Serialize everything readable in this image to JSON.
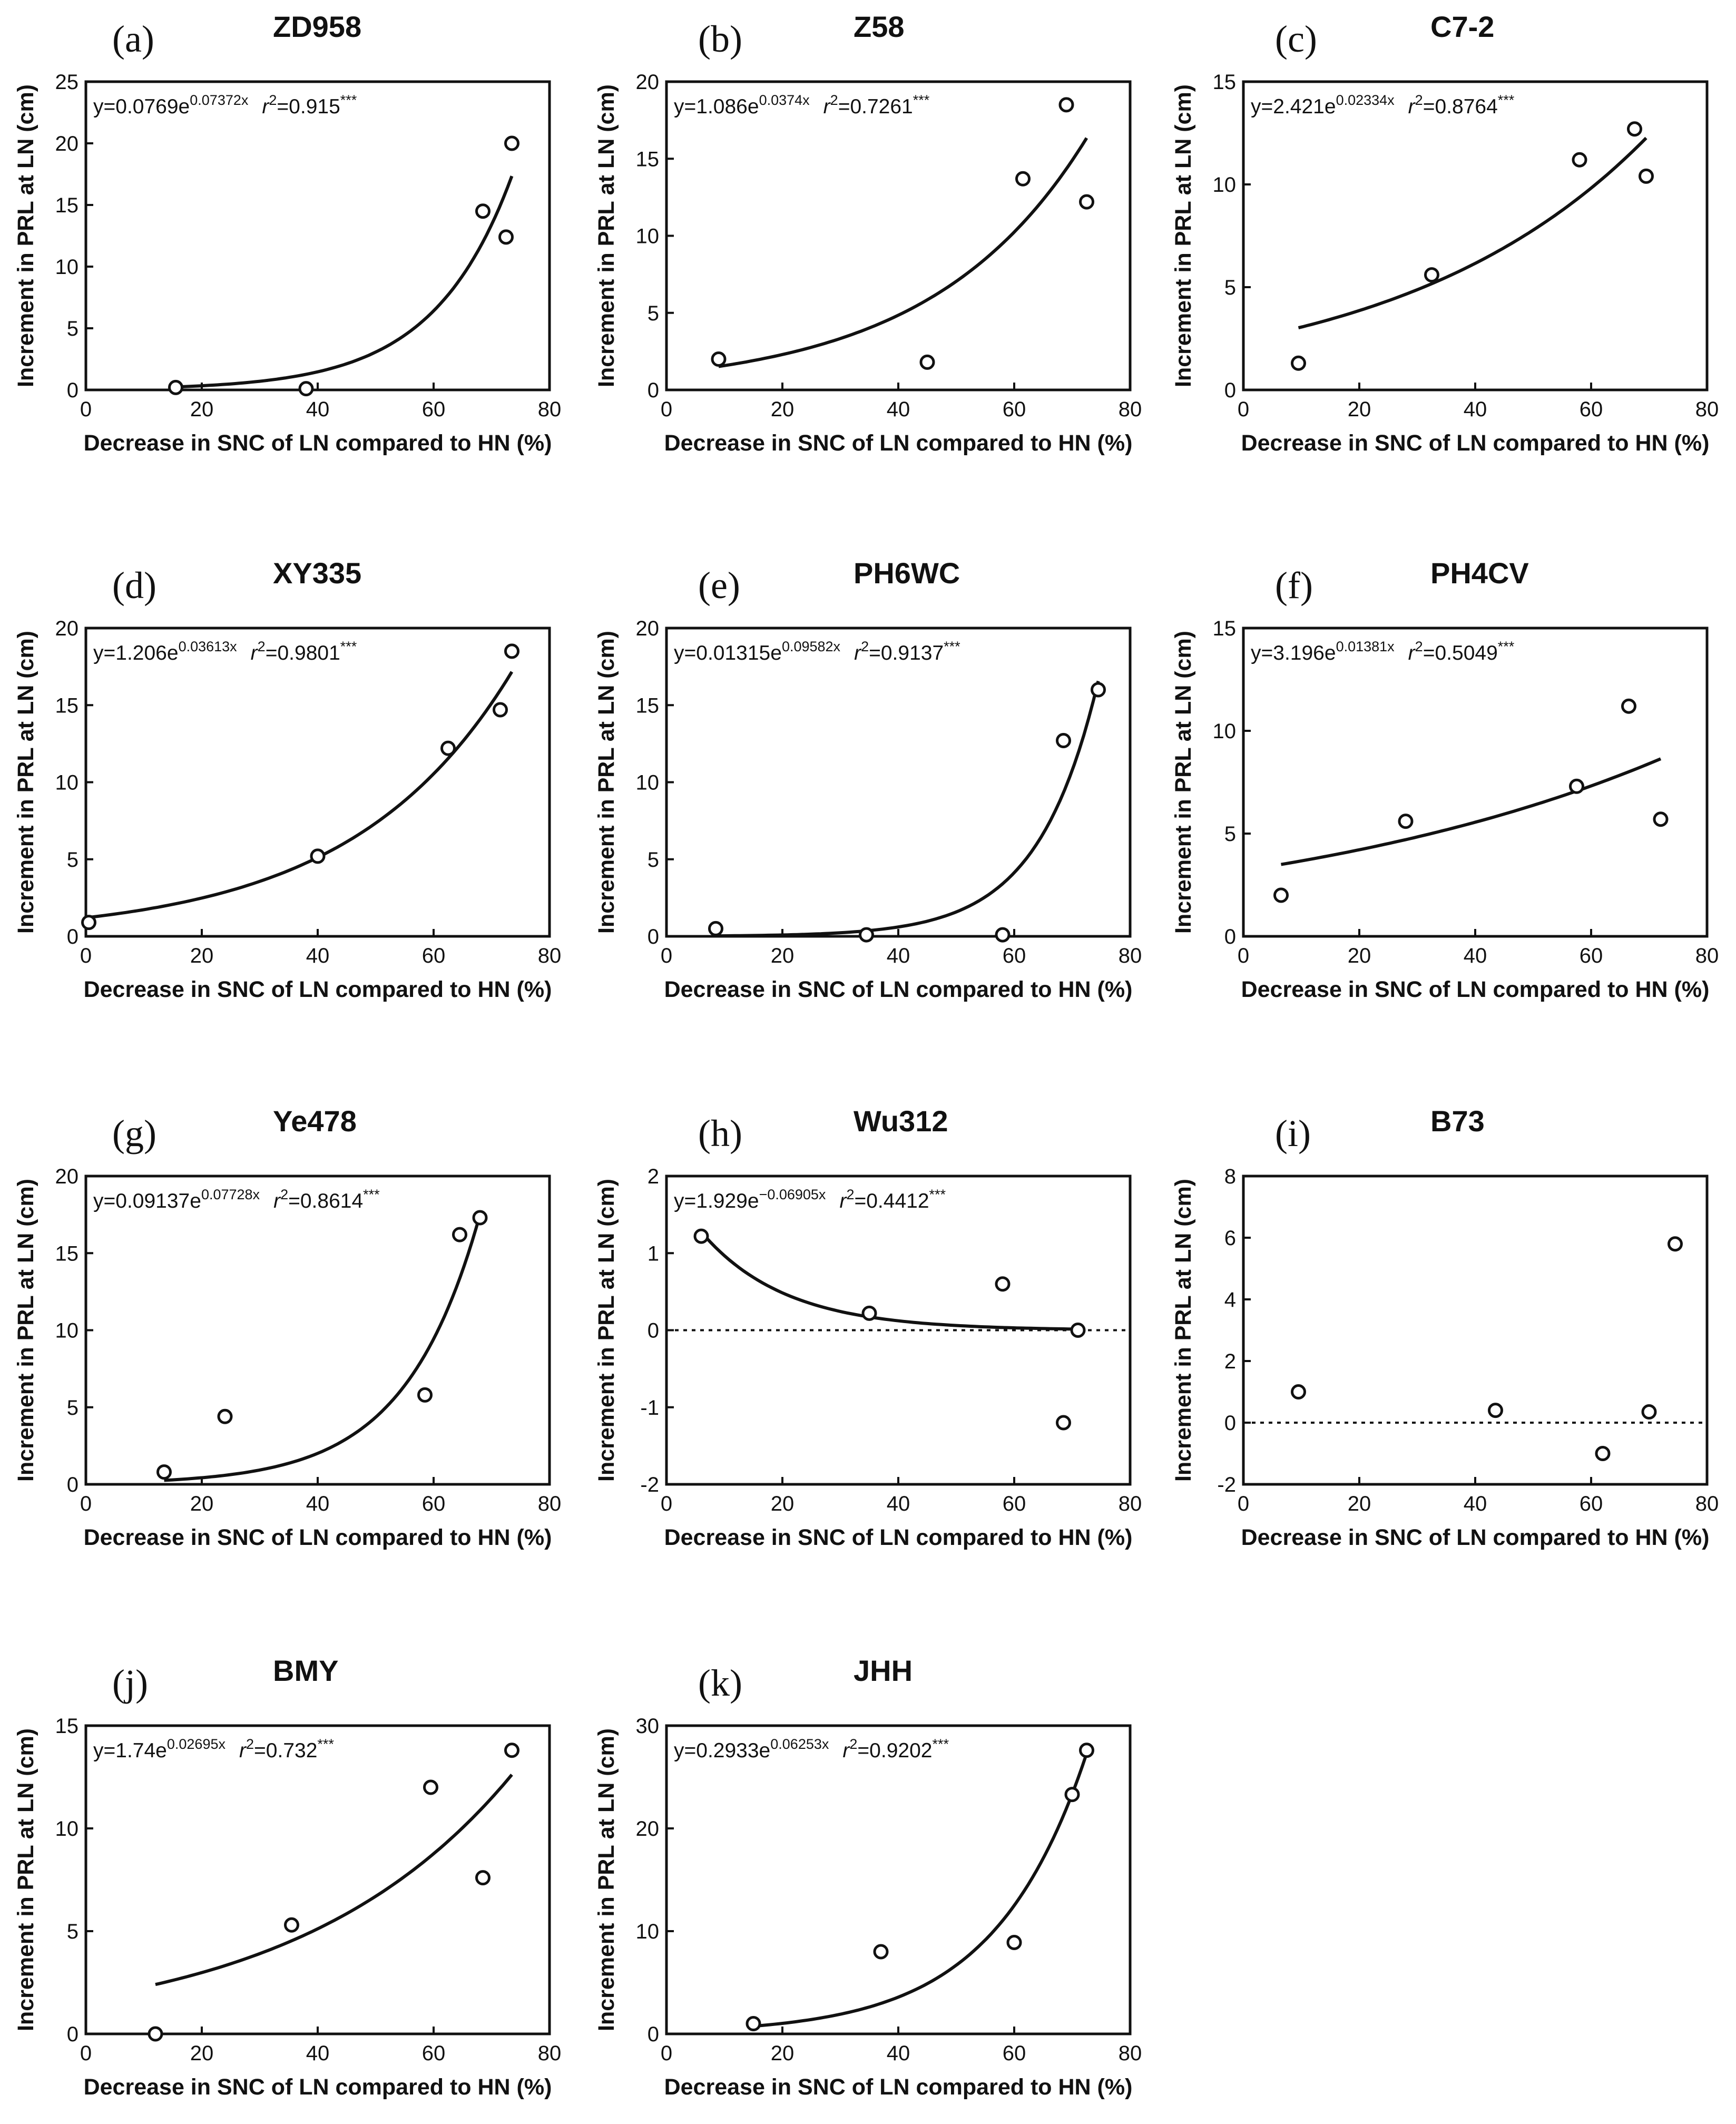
{
  "figure": {
    "panels": [
      {
        "id": "a",
        "label": "(a)",
        "title": "ZD958"
      },
      {
        "id": "b",
        "label": "(b)",
        "title": "Z58"
      },
      {
        "id": "c",
        "label": "(c)",
        "title": "C7-2"
      },
      {
        "id": "d",
        "label": "(d)",
        "title": "XY335"
      },
      {
        "id": "e",
        "label": "(e)",
        "title": "PH6WC"
      },
      {
        "id": "f",
        "label": "(f)",
        "title": "PH4CV"
      },
      {
        "id": "g",
        "label": "(g)",
        "title": "Ye478"
      },
      {
        "id": "h",
        "label": "(h)",
        "title": "Wu312"
      },
      {
        "id": "i",
        "label": "(i)",
        "title": "B73"
      },
      {
        "id": "j",
        "label": "(j)",
        "title": "BMY"
      },
      {
        "id": "k",
        "label": "(k)",
        "title": "JHH"
      }
    ]
  },
  "chart_data": [
    {
      "type": "scatter",
      "panel": "(a)",
      "title": "ZD958",
      "xlabel": "Decrease in SNC of LN compared to HN (%)",
      "ylabel": "Increment in PRL at LN (cm)",
      "xlim": [
        0,
        80
      ],
      "ylim": [
        0,
        25
      ],
      "xticks": [
        "0",
        "20",
        "40",
        "60",
        "80"
      ],
      "yticks": [
        "0",
        "5",
        "10",
        "15",
        "20",
        "25"
      ],
      "x": [
        15.5,
        38.0,
        68.5,
        72.5,
        73.5
      ],
      "y": [
        0.2,
        0.1,
        14.5,
        12.4,
        20.0
      ],
      "fit": {
        "a": 0.0769,
        "b": 0.07372,
        "x_range": [
          15.5,
          73.5
        ]
      },
      "equation": {
        "lhs": "y=0.0769e",
        "exponent": "0.07372x",
        "r2_label": "r",
        "r2_value": "=0.915",
        "signif": "***"
      },
      "zero_line": false
    },
    {
      "type": "scatter",
      "panel": "(b)",
      "title": "Z58",
      "xlabel": "Decrease in SNC of LN compared to HN (%)",
      "ylabel": "Increment in PRL at LN (cm)",
      "xlim": [
        0,
        80
      ],
      "ylim": [
        0,
        20
      ],
      "xticks": [
        "0",
        "20",
        "40",
        "60",
        "80"
      ],
      "yticks": [
        "0",
        "5",
        "10",
        "15",
        "20"
      ],
      "x": [
        9.0,
        45.0,
        61.5,
        69.0,
        72.5
      ],
      "y": [
        2.0,
        1.8,
        13.7,
        18.5,
        12.2
      ],
      "fit": {
        "a": 1.086,
        "b": 0.0374,
        "x_range": [
          9.0,
          72.5
        ]
      },
      "equation": {
        "lhs": "y=1.086e",
        "exponent": "0.0374x",
        "r2_label": "r",
        "r2_value": "=0.7261",
        "signif": "***"
      },
      "zero_line": false
    },
    {
      "type": "scatter",
      "panel": "(c)",
      "title": "C7-2",
      "xlabel": "Decrease in SNC of LN compared to HN (%)",
      "ylabel": "Increment in PRL at LN (cm)",
      "xlim": [
        0,
        80
      ],
      "ylim": [
        0,
        15
      ],
      "xticks": [
        "0",
        "20",
        "40",
        "60",
        "80"
      ],
      "yticks": [
        "0",
        "5",
        "10",
        "15"
      ],
      "x": [
        9.5,
        32.5,
        58.0,
        67.5,
        69.5
      ],
      "y": [
        1.3,
        5.6,
        11.2,
        12.7,
        10.4
      ],
      "fit": {
        "a": 2.421,
        "b": 0.02334,
        "x_range": [
          9.5,
          69.5
        ]
      },
      "equation": {
        "lhs": "y=2.421e",
        "exponent": "0.02334x",
        "r2_label": "r",
        "r2_value": "=0.8764",
        "signif": "***"
      },
      "zero_line": false
    },
    {
      "type": "scatter",
      "panel": "(d)",
      "title": "XY335",
      "xlabel": "Decrease in SNC of LN compared to HN (%)",
      "ylabel": "Increment in PRL at LN (cm)",
      "xlim": [
        0,
        80
      ],
      "ylim": [
        0,
        20
      ],
      "xticks": [
        "0",
        "20",
        "40",
        "60",
        "80"
      ],
      "yticks": [
        "0",
        "5",
        "10",
        "15",
        "20"
      ],
      "x": [
        0.5,
        40.0,
        62.5,
        71.5,
        73.5
      ],
      "y": [
        0.9,
        5.2,
        12.2,
        14.7,
        18.5
      ],
      "fit": {
        "a": 1.206,
        "b": 0.03613,
        "x_range": [
          0.5,
          73.5
        ]
      },
      "equation": {
        "lhs": "y=1.206e",
        "exponent": "0.03613x",
        "r2_label": "r",
        "r2_value": "=0.9801",
        "signif": "***"
      },
      "zero_line": false
    },
    {
      "type": "scatter",
      "panel": "(e)",
      "title": "PH6WC",
      "xlabel": "Decrease in SNC of LN compared to HN (%)",
      "ylabel": "Increment in PRL at LN (cm)",
      "xlim": [
        0,
        80
      ],
      "ylim": [
        0,
        20
      ],
      "xticks": [
        "0",
        "20",
        "40",
        "60",
        "80"
      ],
      "yticks": [
        "0",
        "5",
        "10",
        "15",
        "20"
      ],
      "x": [
        8.5,
        34.5,
        58.0,
        68.5,
        74.5
      ],
      "y": [
        0.5,
        0.1,
        0.1,
        12.7,
        16.0
      ],
      "fit": {
        "a": 0.01315,
        "b": 0.09582,
        "x_range": [
          8.5,
          74.5
        ]
      },
      "equation": {
        "lhs": "y=0.01315e",
        "exponent": "0.09582x",
        "r2_label": "r",
        "r2_value": "=0.9137",
        "signif": "***"
      },
      "zero_line": false
    },
    {
      "type": "scatter",
      "panel": "(f)",
      "title": "PH4CV",
      "xlabel": "Decrease in SNC of LN compared to HN (%)",
      "ylabel": "Increment in PRL at LN (cm)",
      "xlim": [
        0,
        80
      ],
      "ylim": [
        0,
        15
      ],
      "xticks": [
        "0",
        "20",
        "40",
        "60",
        "80"
      ],
      "yticks": [
        "0",
        "5",
        "10",
        "15"
      ],
      "x": [
        6.5,
        28.0,
        57.5,
        66.5,
        72.0
      ],
      "y": [
        2.0,
        5.6,
        7.3,
        11.2,
        5.7
      ],
      "fit": {
        "a": 3.196,
        "b": 0.01381,
        "x_range": [
          6.5,
          72.0
        ]
      },
      "equation": {
        "lhs": "y=3.196e",
        "exponent": "0.01381x",
        "r2_label": "r",
        "r2_value": "=0.5049",
        "signif": "***"
      },
      "zero_line": false
    },
    {
      "type": "scatter",
      "panel": "(g)",
      "title": "Ye478",
      "xlabel": "Decrease in SNC of LN compared to HN (%)",
      "ylabel": "Increment in PRL at LN (cm)",
      "xlim": [
        0,
        80
      ],
      "ylim": [
        0,
        20
      ],
      "xticks": [
        "0",
        "20",
        "40",
        "60",
        "80"
      ],
      "yticks": [
        "0",
        "5",
        "10",
        "15",
        "20"
      ],
      "x": [
        13.5,
        24.0,
        58.5,
        64.5,
        68.0
      ],
      "y": [
        0.8,
        4.4,
        5.8,
        16.2,
        17.3
      ],
      "fit": {
        "a": 0.09137,
        "b": 0.07728,
        "x_range": [
          13.5,
          68.0
        ]
      },
      "equation": {
        "lhs": "y=0.09137e",
        "exponent": "0.07728x",
        "r2_label": "r",
        "r2_value": "=0.8614",
        "signif": "***"
      },
      "zero_line": false
    },
    {
      "type": "scatter",
      "panel": "(h)",
      "title": "Wu312",
      "xlabel": "Decrease in SNC of LN compared to HN (%)",
      "ylabel": "Increment in PRL at LN (cm)",
      "xlim": [
        0,
        80
      ],
      "ylim": [
        -2,
        2
      ],
      "xticks": [
        "0",
        "20",
        "40",
        "60",
        "80"
      ],
      "yticks": [
        "-2",
        "-1",
        "0",
        "1",
        "2"
      ],
      "x": [
        6.0,
        35.0,
        58.0,
        68.5,
        71.0
      ],
      "y": [
        1.22,
        0.22,
        0.6,
        -1.2,
        0.0
      ],
      "fit": {
        "a": 1.929,
        "b": -0.06905,
        "x_range": [
          6.0,
          71.0
        ]
      },
      "equation": {
        "lhs": "y=1.929e",
        "exponent": "−0.06905x",
        "r2_label": "r",
        "r2_value": "=0.4412",
        "signif": "***"
      },
      "zero_line": true
    },
    {
      "type": "scatter",
      "panel": "(i)",
      "title": "B73",
      "xlabel": "Decrease in SNC of LN compared to HN (%)",
      "ylabel": "Increment in PRL at LN (cm)",
      "xlim": [
        0,
        80
      ],
      "ylim": [
        -2,
        8
      ],
      "xticks": [
        "0",
        "20",
        "40",
        "60",
        "80"
      ],
      "yticks": [
        "-2",
        "0",
        "2",
        "4",
        "6",
        "8"
      ],
      "x": [
        9.5,
        43.5,
        62.0,
        70.0,
        74.5
      ],
      "y": [
        1.0,
        0.4,
        -1.0,
        0.35,
        5.8
      ],
      "fit": null,
      "equation": null,
      "zero_line": true
    },
    {
      "type": "scatter",
      "panel": "(j)",
      "title": "BMY",
      "xlabel": "Decrease in SNC of LN compared to HN (%)",
      "ylabel": "Increment in PRL at LN (cm)",
      "xlim": [
        0,
        80
      ],
      "ylim": [
        0,
        15
      ],
      "xticks": [
        "0",
        "20",
        "40",
        "60",
        "80"
      ],
      "yticks": [
        "0",
        "5",
        "10",
        "15"
      ],
      "x": [
        12.0,
        35.5,
        59.5,
        68.5,
        73.5
      ],
      "y": [
        0.0,
        5.3,
        12.0,
        7.6,
        13.8
      ],
      "fit": {
        "a": 1.74,
        "b": 0.02695,
        "x_range": [
          12.0,
          73.5
        ]
      },
      "equation": {
        "lhs": "y=1.74e",
        "exponent": "0.02695x",
        "r2_label": "r",
        "r2_value": "=0.732",
        "signif": "***"
      },
      "zero_line": false
    },
    {
      "type": "scatter",
      "panel": "(k)",
      "title": "JHH",
      "xlabel": "Decrease in SNC of LN compared to HN (%)",
      "ylabel": "Increment in PRL at LN (cm)",
      "xlim": [
        0,
        80
      ],
      "ylim": [
        0,
        30
      ],
      "xticks": [
        "0",
        "20",
        "40",
        "60",
        "80"
      ],
      "yticks": [
        "0",
        "10",
        "20",
        "30"
      ],
      "x": [
        15.0,
        37.0,
        60.0,
        70.0,
        72.5
      ],
      "y": [
        1.0,
        8.0,
        8.9,
        23.3,
        27.6
      ],
      "fit": {
        "a": 0.2933,
        "b": 0.06253,
        "x_range": [
          15.0,
          72.5
        ]
      },
      "equation": {
        "lhs": "y=0.2933e",
        "exponent": "0.06253x",
        "r2_label": "r",
        "r2_value": "=0.9202",
        "signif": "***"
      },
      "zero_line": false
    }
  ]
}
